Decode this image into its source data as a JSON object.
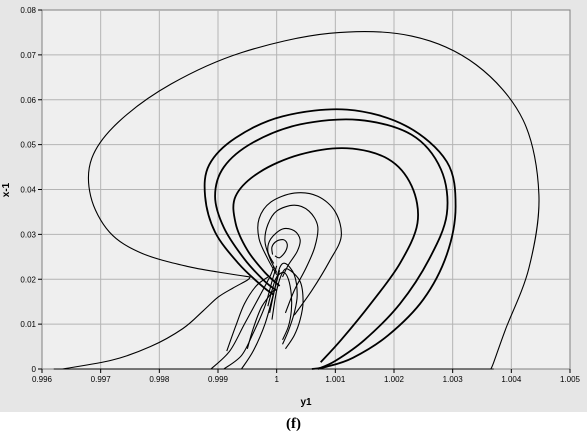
{
  "caption": "(f)",
  "chart_data": {
    "type": "line",
    "title": "",
    "xlabel": "y1",
    "ylabel": "x-1",
    "xlim": [
      0.996,
      1.005
    ],
    "ylim": [
      0,
      0.08
    ],
    "xticks": [
      "0.996",
      "0.997",
      "0.998",
      "0.999",
      "1",
      "1.001",
      "1.002",
      "1.003",
      "1.004",
      "1.005"
    ],
    "yticks": [
      "0",
      "0.01",
      "0.02",
      "0.03",
      "0.04",
      "0.05",
      "0.06",
      "0.07",
      "0.08"
    ],
    "grid": true,
    "colors": {
      "plot_bg": "#efefef",
      "frame_bg": "#e6e6e6",
      "grid": "#b4b4b4",
      "line": "#000000"
    },
    "series": [
      {
        "x": [
          0.99635,
          0.9972,
          0.99785,
          0.9984,
          0.99875,
          0.999,
          0.99925,
          0.9995,
          0.99955
        ],
        "y": [
          0.0,
          0.002,
          0.005,
          0.009,
          0.013,
          0.016,
          0.018,
          0.0198,
          0.0205
        ]
      },
      {
        "x": [
          0.99955,
          0.9992,
          0.9985,
          0.9977,
          0.99715,
          0.99683,
          0.99685,
          0.9973,
          0.9982,
          0.9994,
          1.0009,
          1.0023,
          1.0034,
          1.0042,
          1.00447,
          1.0043,
          1.0039,
          1.0037,
          1.00365
        ],
        "y": [
          0.0205,
          0.0212,
          0.0228,
          0.0258,
          0.0305,
          0.0385,
          0.047,
          0.055,
          0.0635,
          0.0705,
          0.0748,
          0.0742,
          0.0678,
          0.0555,
          0.0388,
          0.0225,
          0.0088,
          0.0015,
          0.0
        ]
      },
      {
        "x": [
          0.9962,
          1.0037
        ],
        "y": [
          0.0,
          0.0
        ]
      },
      {
        "x": [
          0.99888,
          0.9992,
          0.99945,
          0.9997,
          0.9999,
          0.99995
        ],
        "y": [
          0.0,
          0.004,
          0.01,
          0.016,
          0.021,
          0.023
        ]
      },
      {
        "x": [
          0.9991,
          0.9994,
          0.9996,
          0.9998,
          0.99993,
          1.0
        ],
        "y": [
          0.0,
          0.003,
          0.008,
          0.014,
          0.02,
          0.023
        ]
      },
      {
        "x": [
          0.9994,
          0.9996,
          0.9998,
          0.99995,
          1.00005
        ],
        "y": [
          0.0,
          0.004,
          0.01,
          0.017,
          0.022
        ]
      },
      {
        "x": [
          0.99985,
          0.99965,
          0.99945,
          0.9993,
          0.99915
        ],
        "y": [
          0.0205,
          0.0185,
          0.0145,
          0.0095,
          0.004
        ]
      },
      {
        "x": [
          0.99998,
          0.99975,
          0.9996,
          0.9995
        ],
        "y": [
          0.018,
          0.014,
          0.009,
          0.0045
        ]
      },
      {
        "x": [
          0.99995,
          0.99975,
          0.99935,
          0.99895,
          0.99878,
          0.99885,
          0.9993,
          1.0001,
          1.0012,
          1.0022,
          1.0029,
          1.00305,
          1.0029,
          1.0025,
          1.0019,
          1.0013,
          1.00085,
          1.0006
        ],
        "y": [
          0.0165,
          0.0185,
          0.0235,
          0.0305,
          0.0385,
          0.0455,
          0.0515,
          0.0563,
          0.0578,
          0.0542,
          0.0462,
          0.0362,
          0.0255,
          0.0155,
          0.0075,
          0.0025,
          0.0005,
          0.0
        ]
      },
      {
        "x": [
          1.0,
          0.9998,
          0.99945,
          0.9991,
          0.99895,
          0.9991,
          0.9996,
          1.0004,
          1.0014,
          1.0023,
          1.0028,
          1.0029,
          1.0026,
          1.0021,
          1.0015,
          1.001,
          1.0007
        ],
        "y": [
          0.0175,
          0.0195,
          0.0245,
          0.0315,
          0.0385,
          0.045,
          0.0505,
          0.0545,
          0.0555,
          0.0522,
          0.0445,
          0.0345,
          0.0245,
          0.0145,
          0.0065,
          0.0018,
          0.0
        ]
      },
      {
        "x": [
          1.00005,
          0.9998,
          0.9995,
          0.9993,
          0.9993,
          0.9997,
          1.0004,
          1.0012,
          1.0019,
          1.0023,
          1.0024,
          1.0021,
          1.0016,
          1.0011,
          1.00075
        ],
        "y": [
          0.0185,
          0.0215,
          0.0265,
          0.0325,
          0.0385,
          0.0438,
          0.0478,
          0.0492,
          0.0468,
          0.0408,
          0.0325,
          0.0235,
          0.0145,
          0.0065,
          0.0015
        ]
      },
      {
        "x": [
          1.0,
          0.99985,
          0.9997,
          0.9997,
          0.9999,
          1.0003,
          1.0007,
          1.001,
          1.0011,
          1.0009,
          1.0006,
          1.0003
        ],
        "y": [
          0.021,
          0.0245,
          0.029,
          0.0335,
          0.0372,
          0.0392,
          0.0385,
          0.035,
          0.0295,
          0.024,
          0.0175,
          0.012
        ]
      },
      {
        "x": [
          1.0,
          0.99988,
          0.9998,
          0.99985,
          1.0,
          1.0003,
          1.00055,
          1.0007,
          1.00065,
          1.0005,
          1.0003,
          1.00015
        ],
        "y": [
          0.0215,
          0.0248,
          0.0285,
          0.0322,
          0.0352,
          0.0365,
          0.0352,
          0.0318,
          0.0272,
          0.0225,
          0.0175,
          0.0125
        ]
      },
      {
        "x": [
          0.99995,
          0.99985,
          0.9999,
          1.0001,
          1.0003,
          1.0004,
          1.00035,
          1.0002,
          1.0001
        ],
        "y": [
          0.0235,
          0.0262,
          0.029,
          0.0312,
          0.0308,
          0.0288,
          0.0262,
          0.0232,
          0.0205
        ]
      },
      {
        "x": [
          0.99993,
          0.99992,
          1.0,
          1.00012,
          1.00018,
          1.00015,
          1.00005,
          0.99997
        ],
        "y": [
          0.0255,
          0.0272,
          0.0285,
          0.0288,
          0.0278,
          0.0262,
          0.0248,
          0.0252
        ]
      },
      {
        "x": [
          0.99985,
          0.99992,
          1.0,
          1.00012,
          1.0002,
          1.00025,
          1.00025,
          1.0002,
          1.0001
        ],
        "y": [
          0.014,
          0.0175,
          0.0205,
          0.0215,
          0.02,
          0.0165,
          0.013,
          0.0095,
          0.0065
        ]
      },
      {
        "x": [
          0.99988,
          0.99997,
          1.00005,
          1.00015,
          1.0003,
          1.00035,
          1.0003,
          1.0002,
          1.0001
        ],
        "y": [
          0.0125,
          0.018,
          0.0225,
          0.0235,
          0.021,
          0.0165,
          0.0125,
          0.0085,
          0.0055
        ]
      },
      {
        "x": [
          0.99992,
          1.0,
          1.0001,
          1.0002,
          1.0004,
          1.00045,
          1.0004,
          1.0003,
          1.00015
        ],
        "y": [
          0.011,
          0.0175,
          0.0215,
          0.0222,
          0.0195,
          0.015,
          0.011,
          0.0075,
          0.0045
        ]
      }
    ]
  }
}
